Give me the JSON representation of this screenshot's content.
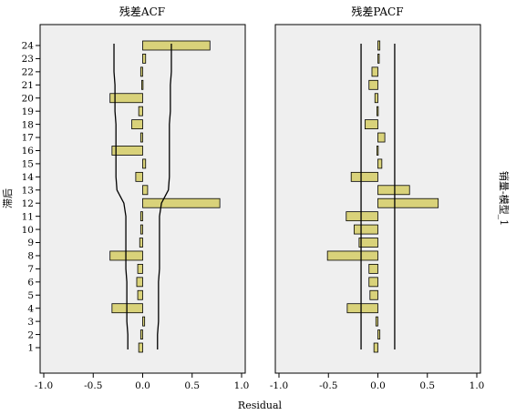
{
  "chart_data": [
    {
      "type": "bar",
      "orientation": "horizontal",
      "title": "残差ACF",
      "ylabel": "滞后",
      "xlabel": "Residual",
      "categories": [
        1,
        2,
        3,
        4,
        5,
        6,
        7,
        8,
        9,
        10,
        11,
        12,
        13,
        14,
        15,
        16,
        17,
        18,
        19,
        20,
        21,
        22,
        23,
        24
      ],
      "values": [
        -0.04,
        -0.02,
        0.02,
        -0.31,
        -0.05,
        -0.06,
        -0.05,
        -0.33,
        -0.03,
        -0.02,
        -0.02,
        0.78,
        0.05,
        -0.07,
        0.03,
        -0.31,
        -0.02,
        -0.11,
        -0.04,
        -0.33,
        -0.01,
        -0.02,
        0.03,
        0.68
      ],
      "confidence_limits": {
        "upper": [
          0.15,
          0.15,
          0.16,
          0.16,
          0.16,
          0.16,
          0.17,
          0.17,
          0.17,
          0.17,
          0.17,
          0.19,
          0.26,
          0.27,
          0.27,
          0.27,
          0.27,
          0.27,
          0.28,
          0.28,
          0.28,
          0.29,
          0.29,
          0.29
        ],
        "lower": [
          -0.15,
          -0.15,
          -0.16,
          -0.16,
          -0.16,
          -0.16,
          -0.17,
          -0.17,
          -0.17,
          -0.17,
          -0.17,
          -0.19,
          -0.26,
          -0.27,
          -0.27,
          -0.27,
          -0.27,
          -0.27,
          -0.28,
          -0.28,
          -0.28,
          -0.29,
          -0.29,
          -0.29
        ]
      },
      "xlim": [
        -1.0,
        1.0
      ],
      "xticks": [
        "-1.0",
        "-0.5",
        "0.0",
        "0.5",
        "1.0"
      ],
      "bar_color": "#d9d27a",
      "panel_bg": "#efefef",
      "grid": false
    },
    {
      "type": "bar",
      "orientation": "horizontal",
      "title": "残差PACF",
      "right_label": "销量-模型_1",
      "categories": [
        1,
        2,
        3,
        4,
        5,
        6,
        7,
        8,
        9,
        10,
        11,
        12,
        13,
        14,
        15,
        16,
        17,
        18,
        19,
        20,
        21,
        22,
        23,
        24
      ],
      "values": [
        -0.04,
        0.02,
        -0.02,
        -0.31,
        -0.08,
        -0.09,
        -0.09,
        -0.51,
        -0.19,
        -0.24,
        -0.32,
        0.61,
        0.32,
        -0.27,
        0.04,
        -0.01,
        0.07,
        -0.13,
        -0.01,
        -0.03,
        -0.09,
        -0.06,
        0.01,
        0.02
      ],
      "confidence_limits": {
        "upper": 0.17,
        "lower": -0.17
      },
      "xlim": [
        -1.0,
        1.0
      ],
      "xticks": [
        "-1.0",
        "-0.5",
        "0.0",
        "0.5",
        "1.0"
      ],
      "bar_color": "#d9d27a",
      "panel_bg": "#efefef",
      "grid": false
    }
  ]
}
